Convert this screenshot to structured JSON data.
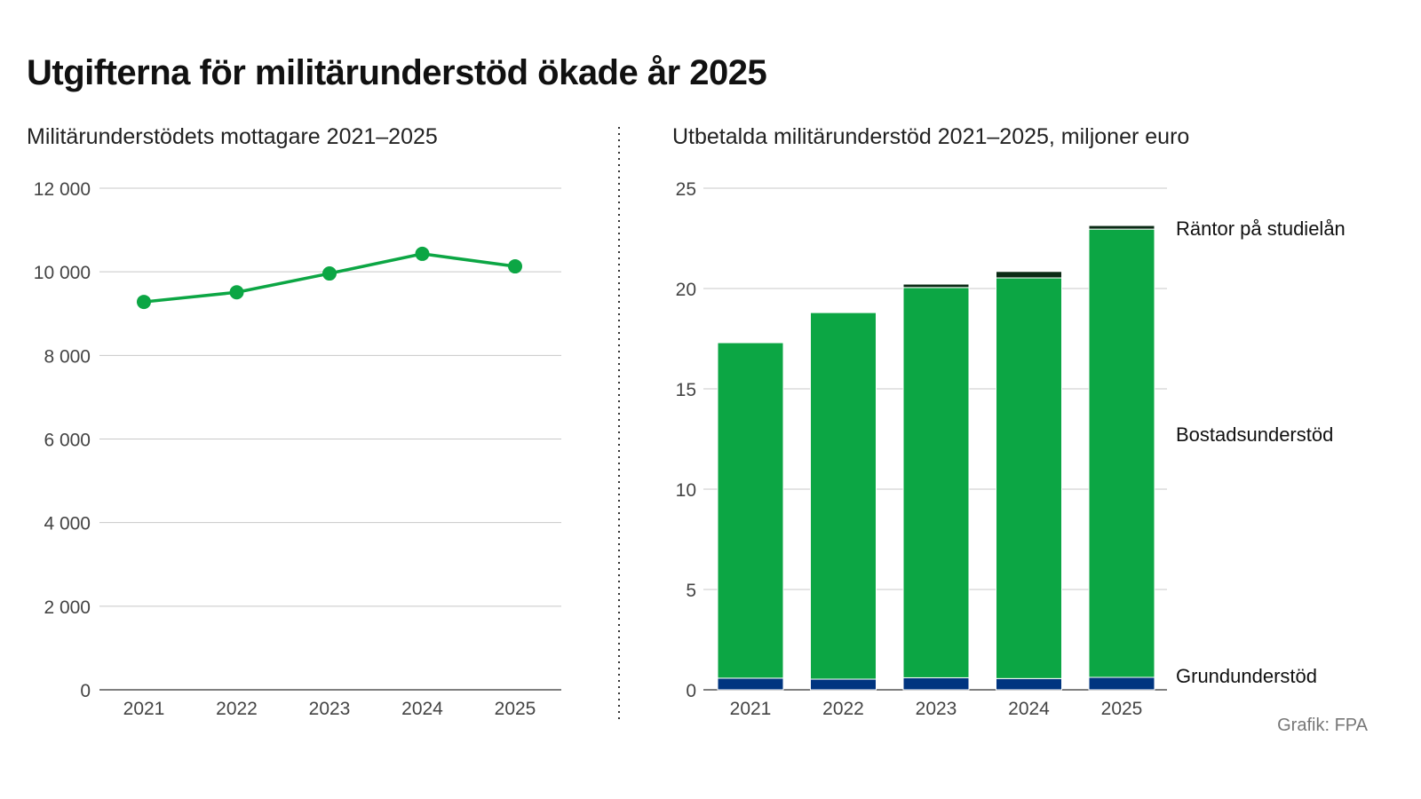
{
  "title": "Utgifterna för militärunderstöd ökade år 2025",
  "credit": "Grafik: FPA",
  "colors": {
    "green": "#0ca644",
    "navy": "#003580",
    "dark": "#0a2a14",
    "grid": "#c8c8c8"
  },
  "chart_data": [
    {
      "type": "line",
      "title": "Militärunderstödets mottagare 2021–2025",
      "categories": [
        "2021",
        "2022",
        "2023",
        "2024",
        "2025"
      ],
      "values": [
        9280,
        9510,
        9960,
        10430,
        10130
      ],
      "ylim": [
        0,
        12000
      ],
      "yticks": [
        0,
        2000,
        4000,
        6000,
        8000,
        10000,
        12000
      ],
      "ytick_labels": [
        "0",
        "2 000",
        "4 000",
        "6 000",
        "8 000",
        "10 000",
        "12 000"
      ],
      "grid": true
    },
    {
      "type": "bar",
      "stacked": true,
      "title": "Utbetalda militärunderstöd 2021–2025, miljoner euro",
      "categories": [
        "2021",
        "2022",
        "2023",
        "2024",
        "2025"
      ],
      "series": [
        {
          "name": "Grundunderstöd",
          "values": [
            0.58,
            0.53,
            0.6,
            0.56,
            0.62
          ]
        },
        {
          "name": "Bostadsunderstöd",
          "values": [
            16.72,
            18.27,
            19.45,
            19.97,
            22.34
          ]
        },
        {
          "name": "Räntor på studielån",
          "values": [
            0.0,
            0.0,
            0.17,
            0.32,
            0.18
          ]
        }
      ],
      "ylim": [
        0,
        25
      ],
      "yticks": [
        0,
        5,
        10,
        15,
        20,
        25
      ],
      "ytick_labels": [
        "0",
        "5",
        "10",
        "15",
        "20",
        "25"
      ],
      "grid": true,
      "legend": "right"
    }
  ]
}
